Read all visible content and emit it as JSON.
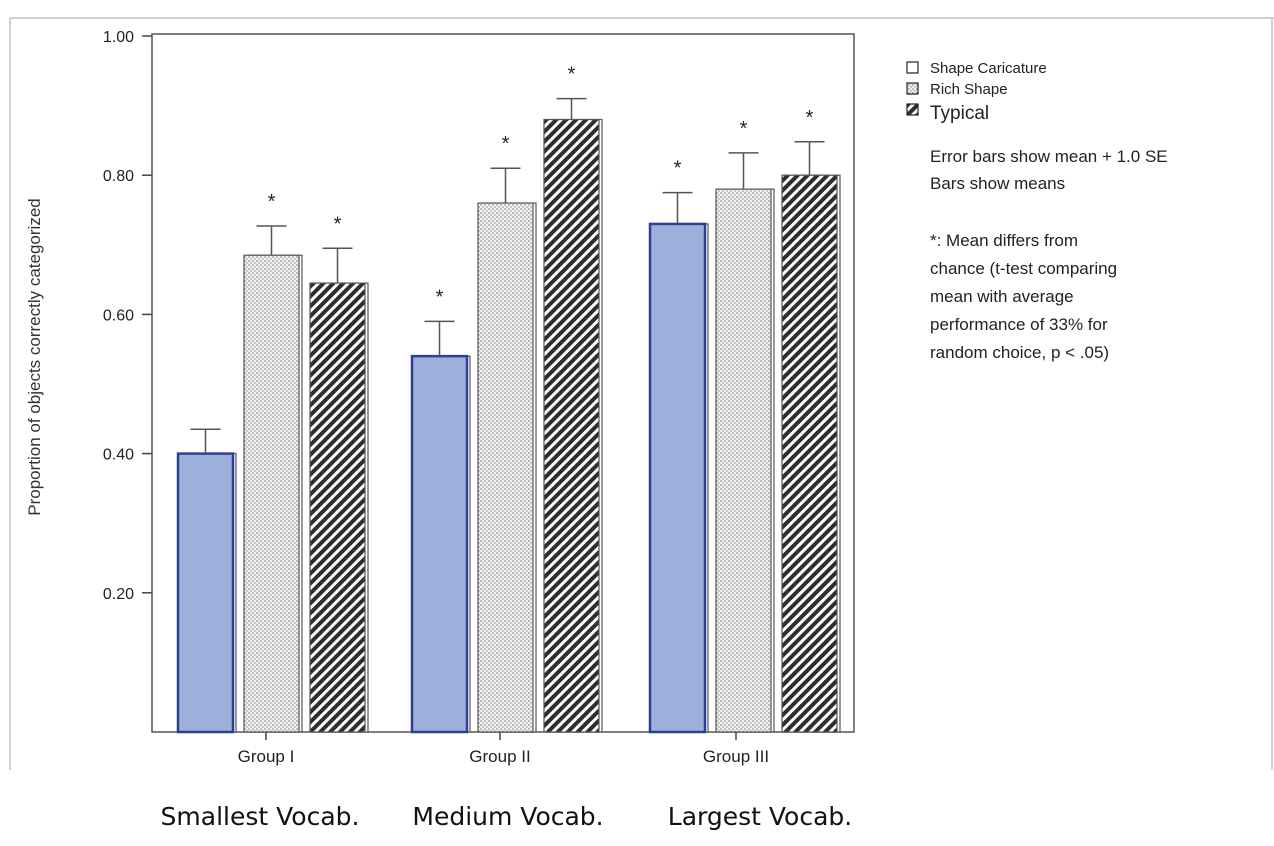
{
  "chart_data": {
    "type": "bar",
    "ylabel": "Proportion of objects correctly categorized",
    "ylim": [
      0,
      1.0
    ],
    "yticks": [
      {
        "value": 0.2,
        "label": "0.20"
      },
      {
        "value": 0.4,
        "label": "0.40"
      },
      {
        "value": 0.6,
        "label": "0.60"
      },
      {
        "value": 0.8,
        "label": "0.80"
      },
      {
        "value": 1.0,
        "label": "1.00"
      }
    ],
    "categories": [
      "Group I",
      "Group II",
      "Group III"
    ],
    "subcategories": [
      "Smallest Vocab.",
      "Medium Vocab.",
      "Largest Vocab."
    ],
    "series": [
      {
        "name": "Shape Caricature",
        "pattern": "solid",
        "values": [
          0.4,
          0.54,
          0.73
        ],
        "errors": [
          0.035,
          0.05,
          0.045
        ],
        "significant": [
          false,
          true,
          true
        ]
      },
      {
        "name": "Rich Shape",
        "pattern": "dots",
        "values": [
          0.685,
          0.76,
          0.78
        ],
        "errors": [
          0.042,
          0.05,
          0.052
        ],
        "significant": [
          true,
          true,
          true
        ]
      },
      {
        "name": "Typical",
        "pattern": "hatch",
        "values": [
          0.645,
          0.88,
          0.8
        ],
        "errors": [
          0.05,
          0.03,
          0.048
        ],
        "significant": [
          true,
          true,
          true
        ]
      }
    ],
    "star": "*",
    "notes": {
      "error_bars": "Error bars show mean + 1.0 SE",
      "bars": "Bars show means",
      "significance": [
        "*: Mean differs from",
        "chance (t-test comparing",
        "mean with average",
        "performance of 33% for",
        "random choice, p < .05)"
      ]
    },
    "colors": {
      "caricature_fill": "#9db0dc",
      "caricature_stroke": "#2e3f8f",
      "axis": "#444444"
    }
  }
}
